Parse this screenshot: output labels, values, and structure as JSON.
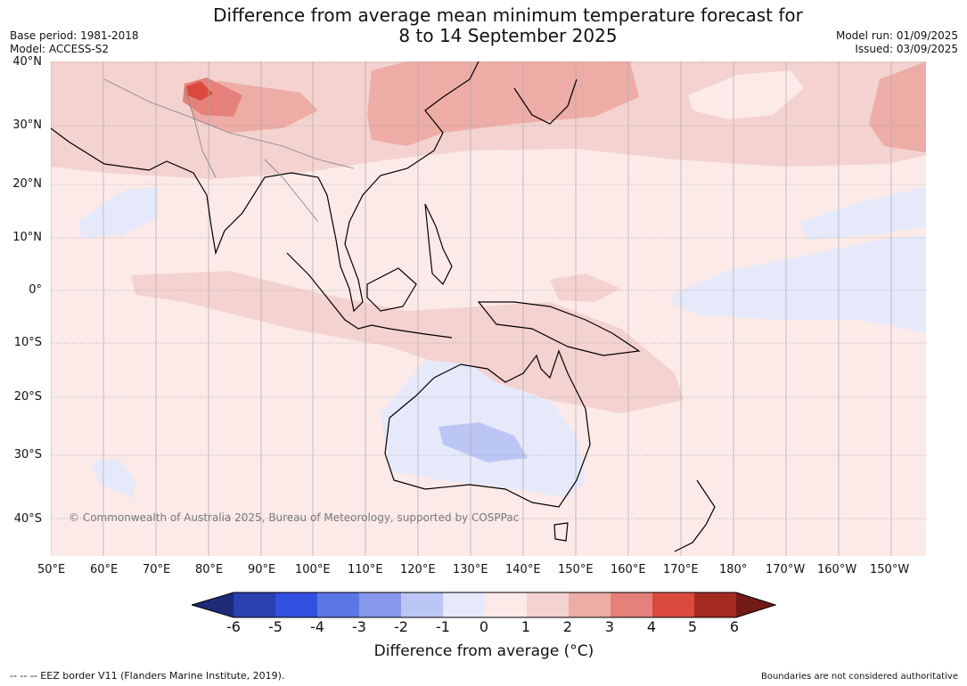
{
  "header": {
    "title_line1": "Difference from average mean minimum temperature forecast for",
    "title_line2": "8 to 14 September 2025",
    "base_period": "Base period: 1981-2018",
    "model": "Model: ACCESS-S2",
    "model_run": "Model run: 01/09/2025",
    "issued": "Issued: 03/09/2025"
  },
  "map": {
    "region": "Indo-Pacific",
    "copyright": "© Commonwealth of Australia 2025, Bureau of Meteorology, supported by COSPPac",
    "lat_labels": [
      "40°N",
      "30°N",
      "20°N",
      "10°N",
      "0°",
      "10°S",
      "20°S",
      "30°S",
      "40°S"
    ],
    "lon_labels": [
      "50°E",
      "60°E",
      "70°E",
      "80°E",
      "90°E",
      "100°E",
      "110°E",
      "120°E",
      "130°E",
      "140°E",
      "150°E",
      "160°E",
      "170°E",
      "180°",
      "170°W",
      "160°W",
      "150°W"
    ],
    "background_color": "#fbeae8"
  },
  "colorbar": {
    "ticks": [
      "-6",
      "-5",
      "-4",
      "-3",
      "-2",
      "-1",
      "0",
      "1",
      "2",
      "3",
      "4",
      "5",
      "6"
    ],
    "colors": [
      "#1c2a78",
      "#2a3fb0",
      "#3250e0",
      "#5b76e6",
      "#8798ec",
      "#bcc6f5",
      "#e6e9fa",
      "#fbeae8",
      "#f4d2cf",
      "#edaca6",
      "#e5807a",
      "#d94a3d",
      "#a72a22",
      "#741a16"
    ],
    "label": "Difference from average (°C)"
  },
  "footer": {
    "left": "--  --  -- EEZ border V11 (Flanders Marine Institute, 2019).",
    "right": "Boundaries are not considered authoritative"
  }
}
